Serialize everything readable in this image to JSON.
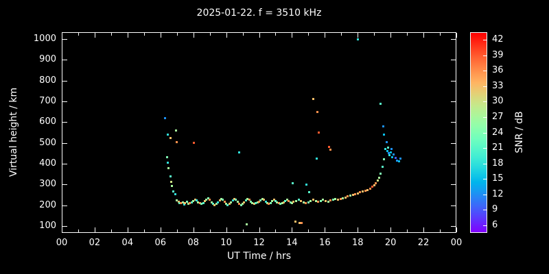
{
  "title": "2025-01-22. f = 3510 kHz",
  "colors": {
    "background": "#000000",
    "foreground": "#ffffff"
  },
  "chart_data": {
    "type": "scatter",
    "title": "2025-01-22. f = 3510 kHz",
    "xlabel": "UT Time / hrs",
    "ylabel": "Virtual height / km",
    "xlim": [
      0,
      24
    ],
    "ylim": [
      100,
      1000
    ],
    "grid": false,
    "x_ticks": {
      "hours": [
        0,
        2,
        4,
        6,
        8,
        10,
        12,
        14,
        16,
        18,
        20,
        22,
        24
      ],
      "labels": [
        "00",
        "02",
        "04",
        "06",
        "08",
        "10",
        "12",
        "14",
        "16",
        "18",
        "20",
        "22",
        "00"
      ],
      "minor_hours": [
        1,
        3,
        5,
        7,
        9,
        11,
        13,
        15,
        17,
        19,
        21,
        23
      ]
    },
    "y_ticks": [
      100,
      200,
      300,
      400,
      500,
      600,
      700,
      800,
      900,
      1000
    ],
    "colorbar": {
      "label": "SNR / dB",
      "ticks": [
        6,
        9,
        12,
        15,
        18,
        21,
        24,
        27,
        30,
        33,
        36,
        39,
        42
      ],
      "range": [
        4.5,
        43.5
      ],
      "colormap": "rainbow",
      "top_color": "#ff0000",
      "bottom_color": "#8000ff"
    },
    "points_format": [
      "ut_hour",
      "virtual_height_km",
      "snr_db"
    ],
    "points": [
      [
        6.3,
        620,
        12
      ],
      [
        6.45,
        540,
        18
      ],
      [
        6.6,
        522,
        33
      ],
      [
        6.95,
        560,
        27
      ],
      [
        7.0,
        505,
        36
      ],
      [
        6.4,
        430,
        24
      ],
      [
        6.45,
        405,
        18
      ],
      [
        6.5,
        378,
        27
      ],
      [
        6.6,
        340,
        21
      ],
      [
        6.65,
        312,
        30
      ],
      [
        6.7,
        292,
        27
      ],
      [
        6.8,
        268,
        21
      ],
      [
        6.9,
        252,
        18
      ],
      [
        7.0,
        225,
        27
      ],
      [
        7.1,
        218,
        33
      ],
      [
        7.15,
        210,
        21
      ],
      [
        7.25,
        212,
        36
      ],
      [
        7.35,
        215,
        27
      ],
      [
        7.45,
        205,
        18
      ],
      [
        7.5,
        210,
        33
      ],
      [
        7.6,
        216,
        24
      ],
      [
        7.7,
        206,
        27
      ],
      [
        7.8,
        210,
        36
      ],
      [
        7.9,
        214,
        21
      ],
      [
        8.0,
        220,
        27
      ],
      [
        8.1,
        228,
        33
      ],
      [
        8.2,
        224,
        18
      ],
      [
        8.3,
        214,
        27
      ],
      [
        8.4,
        210,
        36
      ],
      [
        8.5,
        206,
        24
      ],
      [
        8.6,
        210,
        21
      ],
      [
        8.7,
        220,
        33
      ],
      [
        8.8,
        228,
        27
      ],
      [
        8.9,
        234,
        24
      ],
      [
        9.0,
        226,
        36
      ],
      [
        9.1,
        214,
        27
      ],
      [
        9.2,
        206,
        21
      ],
      [
        9.3,
        200,
        33
      ],
      [
        9.4,
        206,
        27
      ],
      [
        9.5,
        214,
        18
      ],
      [
        9.6,
        224,
        33
      ],
      [
        9.7,
        230,
        27
      ],
      [
        9.8,
        226,
        24
      ],
      [
        9.9,
        216,
        36
      ],
      [
        10.0,
        206,
        27
      ],
      [
        10.1,
        200,
        21
      ],
      [
        10.2,
        206,
        33
      ],
      [
        10.3,
        214,
        27
      ],
      [
        10.4,
        224,
        18
      ],
      [
        10.5,
        230,
        33
      ],
      [
        10.6,
        226,
        24
      ],
      [
        10.7,
        216,
        27
      ],
      [
        10.8,
        206,
        36
      ],
      [
        10.9,
        200,
        24
      ],
      [
        11.0,
        206,
        27
      ],
      [
        11.1,
        214,
        33
      ],
      [
        11.2,
        224,
        21
      ],
      [
        11.3,
        230,
        27
      ],
      [
        11.4,
        226,
        36
      ],
      [
        11.5,
        216,
        24
      ],
      [
        11.6,
        210,
        27
      ],
      [
        11.7,
        206,
        33
      ],
      [
        11.8,
        210,
        21
      ],
      [
        11.9,
        214,
        27
      ],
      [
        12.0,
        216,
        36
      ],
      [
        12.1,
        224,
        24
      ],
      [
        12.2,
        230,
        27
      ],
      [
        12.3,
        226,
        33
      ],
      [
        12.4,
        216,
        18
      ],
      [
        12.5,
        210,
        27
      ],
      [
        12.6,
        206,
        36
      ],
      [
        12.7,
        210,
        24
      ],
      [
        12.8,
        220,
        27
      ],
      [
        12.9,
        226,
        33
      ],
      [
        13.0,
        220,
        21
      ],
      [
        13.1,
        214,
        27
      ],
      [
        13.2,
        210,
        36
      ],
      [
        13.3,
        206,
        24
      ],
      [
        13.4,
        210,
        27
      ],
      [
        13.5,
        214,
        33
      ],
      [
        13.6,
        220,
        21
      ],
      [
        13.7,
        226,
        27
      ],
      [
        13.8,
        220,
        36
      ],
      [
        13.9,
        214,
        24
      ],
      [
        14.0,
        210,
        27
      ],
      [
        14.1,
        216,
        33
      ],
      [
        14.25,
        220,
        27
      ],
      [
        14.4,
        226,
        21
      ],
      [
        14.55,
        220,
        33
      ],
      [
        14.7,
        214,
        27
      ],
      [
        14.85,
        210,
        36
      ],
      [
        15.0,
        214,
        24
      ],
      [
        15.15,
        220,
        27
      ],
      [
        15.3,
        226,
        33
      ],
      [
        15.45,
        220,
        27
      ],
      [
        15.6,
        216,
        36
      ],
      [
        15.75,
        220,
        24
      ],
      [
        15.9,
        226,
        27
      ],
      [
        16.05,
        220,
        33
      ],
      [
        16.2,
        216,
        27
      ],
      [
        16.35,
        222,
        36
      ],
      [
        16.5,
        226,
        24
      ],
      [
        16.65,
        230,
        27
      ],
      [
        16.8,
        226,
        33
      ],
      [
        16.95,
        230,
        36
      ],
      [
        17.1,
        234,
        27
      ],
      [
        17.25,
        238,
        33
      ],
      [
        17.4,
        242,
        36
      ],
      [
        17.55,
        246,
        27
      ],
      [
        17.7,
        250,
        33
      ],
      [
        17.85,
        254,
        36
      ],
      [
        18.0,
        258,
        33
      ],
      [
        18.15,
        262,
        36
      ],
      [
        18.3,
        266,
        33
      ],
      [
        18.45,
        270,
        36
      ],
      [
        18.6,
        274,
        33
      ],
      [
        8.05,
        500,
        39
      ],
      [
        10.8,
        455,
        18
      ],
      [
        11.25,
        108,
        27
      ],
      [
        14.2,
        122,
        33
      ],
      [
        14.45,
        116,
        33
      ],
      [
        14.6,
        114,
        36
      ],
      [
        14.05,
        305,
        21
      ],
      [
        14.9,
        300,
        18
      ],
      [
        15.05,
        262,
        21
      ],
      [
        15.3,
        710,
        33
      ],
      [
        15.55,
        650,
        36
      ],
      [
        15.65,
        550,
        39
      ],
      [
        15.5,
        425,
        18
      ],
      [
        16.25,
        480,
        39
      ],
      [
        16.35,
        468,
        36
      ],
      [
        18.0,
        1000,
        18
      ],
      [
        18.75,
        280,
        36
      ],
      [
        18.9,
        288,
        39
      ],
      [
        19.0,
        296,
        33
      ],
      [
        19.1,
        306,
        36
      ],
      [
        19.2,
        318,
        30
      ],
      [
        19.3,
        334,
        27
      ],
      [
        19.38,
        352,
        24
      ],
      [
        19.4,
        690,
        21
      ],
      [
        19.55,
        580,
        12
      ],
      [
        19.6,
        540,
        15
      ],
      [
        19.5,
        385,
        21
      ],
      [
        19.6,
        420,
        24
      ],
      [
        19.7,
        470,
        18
      ],
      [
        19.75,
        505,
        12
      ],
      [
        19.8,
        462,
        15
      ],
      [
        19.85,
        478,
        21
      ],
      [
        19.9,
        450,
        12
      ],
      [
        19.95,
        440,
        18
      ],
      [
        20.0,
        455,
        15
      ],
      [
        20.05,
        470,
        12
      ],
      [
        20.1,
        430,
        15
      ],
      [
        20.2,
        444,
        12
      ],
      [
        20.3,
        428,
        9
      ],
      [
        20.4,
        416,
        12
      ],
      [
        20.5,
        412,
        15
      ],
      [
        20.6,
        424,
        12
      ]
    ]
  }
}
